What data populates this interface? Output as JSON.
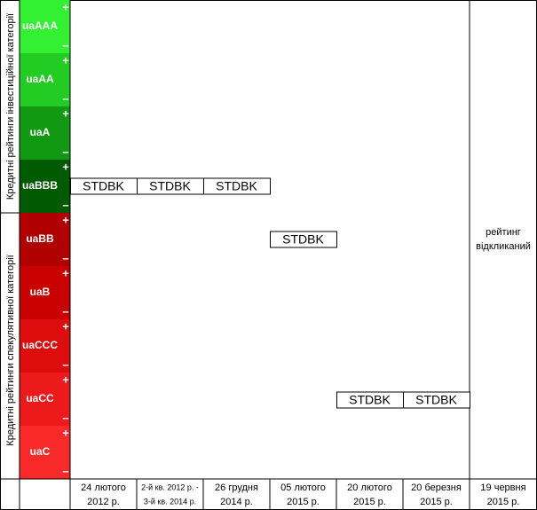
{
  "categories": {
    "investment": "Кредитні рейтинги інвестиційної категорії",
    "speculative": "Кредитні рейтинги спекулятивної категорії"
  },
  "plus": "+",
  "minus": "–",
  "ratings": [
    {
      "label": "uaAAA",
      "color": "#33f033"
    },
    {
      "label": "uaAA",
      "color": "#22cc22"
    },
    {
      "label": "uaA",
      "color": "#119a11"
    },
    {
      "label": "uaBBB",
      "color": "#005a00"
    },
    {
      "label": "uaBB",
      "color": "#b00000"
    },
    {
      "label": "uaB",
      "color": "#c80000"
    },
    {
      "label": "uaCCC",
      "color": "#dd0d0d"
    },
    {
      "label": "uaCC",
      "color": "#ec1a1a"
    },
    {
      "label": "uaC",
      "color": "#fb2a2a"
    }
  ],
  "columns": [
    {
      "date": [
        "24 лютого",
        "2012 р."
      ],
      "rating": "STDBK"
    },
    {
      "date": [
        "2-й кв. 2012 р. -",
        "3-й кв. 2014 р."
      ],
      "rating": "STDBK"
    },
    {
      "date": [
        "26 грудня",
        "2014 р."
      ],
      "rating": "STDBK"
    },
    {
      "date": [
        "05 лютого",
        "2015 р."
      ],
      "rating": "STDBK"
    },
    {
      "date": [
        "20 лютого",
        "2015 р."
      ],
      "rating": "STDBK"
    },
    {
      "date": [
        "20 березня",
        "2015 р."
      ],
      "rating": "STDBK"
    },
    {
      "date": [
        "19 червня",
        "2015 р."
      ],
      "rating": [
        "рейтинг",
        "відкликаний"
      ]
    }
  ]
}
